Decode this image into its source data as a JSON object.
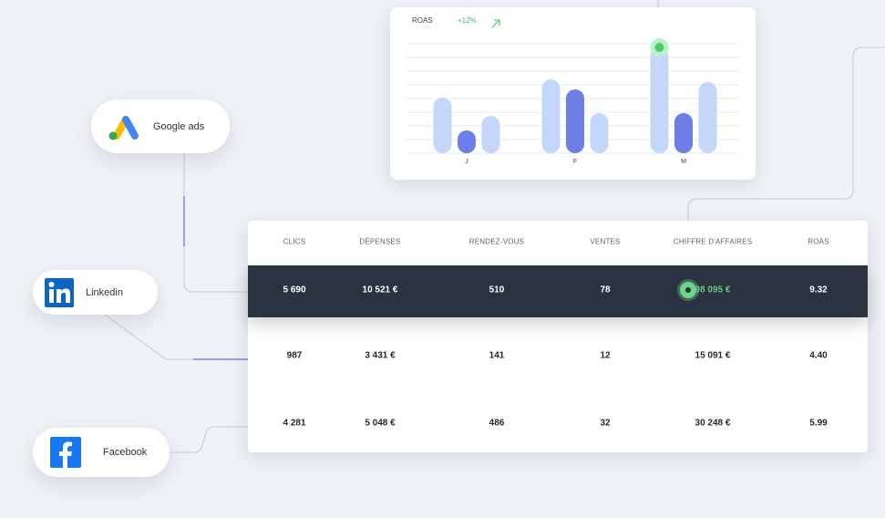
{
  "roas_chart": {
    "label": "ROAS",
    "change": "+12%",
    "categories": [
      "J",
      "F",
      "M"
    ],
    "series": [
      {
        "color": "#c4d7fb",
        "values": [
          61,
          81,
          116
        ]
      },
      {
        "color": "#6b7fe6",
        "values": [
          25,
          70,
          44
        ]
      },
      {
        "color": "#c4d7fb",
        "values": [
          41,
          44,
          78
        ]
      }
    ],
    "ylim": [
      0,
      120
    ],
    "yticks": [
      0,
      15,
      30,
      45,
      60,
      75,
      90,
      105,
      120
    ],
    "grid": true
  },
  "sources": [
    {
      "label": "Google ads"
    },
    {
      "label": "Linkedin"
    },
    {
      "label": "Facebook"
    }
  ],
  "table": {
    "headers": [
      "CLICS",
      "DÉPENSES",
      "RENDEZ-VOUS",
      "VENTES",
      "CHIFFRE D'AFFAIRES",
      "ROAS"
    ],
    "rows": [
      [
        "5 690",
        "10 521 €",
        "510",
        "78",
        "98 095 €",
        "9.32"
      ],
      [
        "987",
        "3 431 €",
        "141",
        "12",
        "15 091 €",
        "4.40"
      ],
      [
        "4 281",
        "5 048 €",
        "486",
        "32",
        "30 248 €",
        "5.99"
      ]
    ]
  }
}
